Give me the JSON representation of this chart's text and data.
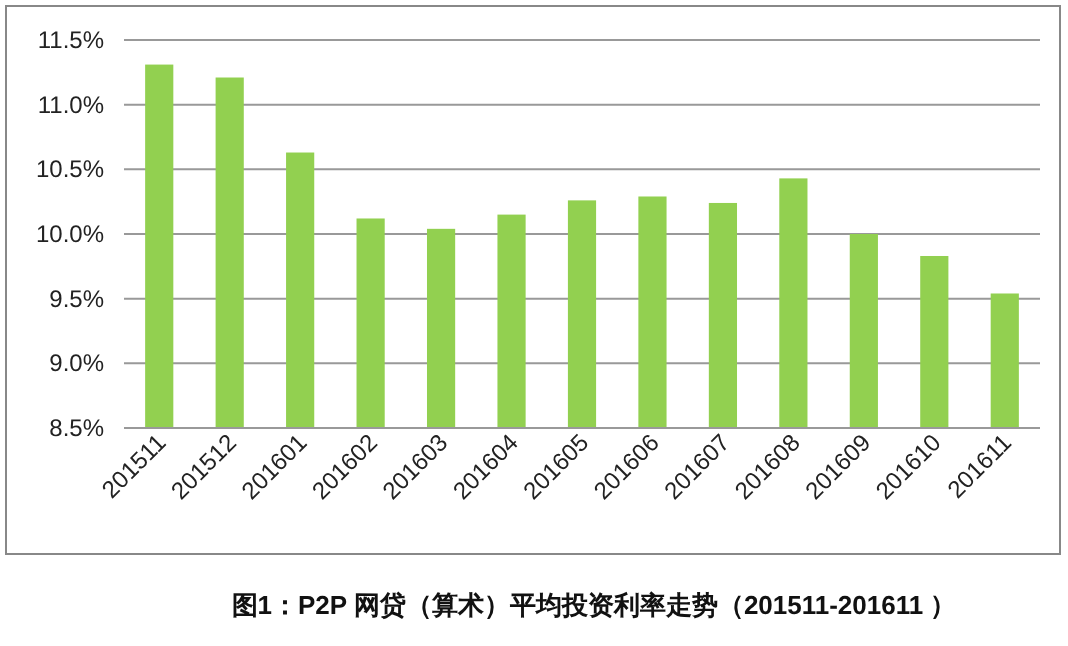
{
  "chart_data": {
    "type": "bar",
    "title": "图1：P2P 网贷（算术）平均投资利率走势（201511-201611 ）",
    "categories": [
      "201511",
      "201512",
      "201601",
      "201602",
      "201603",
      "201604",
      "201605",
      "201606",
      "201607",
      "201608",
      "201609",
      "201610",
      "201611"
    ],
    "values": [
      11.31,
      11.21,
      10.63,
      10.12,
      10.04,
      10.15,
      10.26,
      10.29,
      10.24,
      10.43,
      10.0,
      9.83,
      9.54
    ],
    "color": "#92d050",
    "ylim": [
      8.5,
      11.5
    ],
    "yticks": [
      {
        "value": 8.5,
        "label": "8.5%"
      },
      {
        "value": 9,
        "label": "9.0%"
      },
      {
        "value": 9.5,
        "label": "9.5%"
      },
      {
        "value": 10,
        "label": "10.0%"
      },
      {
        "value": 10.5,
        "label": "10.5%"
      },
      {
        "value": 11,
        "label": "11.0%"
      },
      {
        "value": 11.5,
        "label": "11.5%"
      }
    ],
    "grid": "y"
  }
}
